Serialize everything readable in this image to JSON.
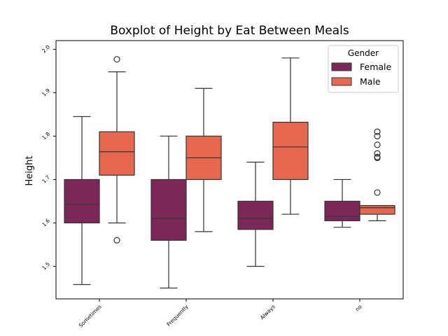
{
  "chart_data": {
    "type": "boxplot",
    "title": "Boxplot of Height by Eat Between Meals",
    "xlabel": "",
    "ylabel": "Height",
    "ylim": [
      1.425,
      2.02
    ],
    "yticks": [
      1.5,
      1.6,
      1.7,
      1.8,
      1.9,
      2.0
    ],
    "categories": [
      "Sometimes",
      "Frequently",
      "Always",
      "no"
    ],
    "legend": {
      "title": "Gender",
      "placement": "top-right"
    },
    "grid": false,
    "series": [
      {
        "name": "Female",
        "color": "#7b2858",
        "boxes": [
          {
            "whisker_low": 1.458,
            "q1": 1.6,
            "median": 1.643,
            "q3": 1.7,
            "whisker_high": 1.845,
            "outliers": []
          },
          {
            "whisker_low": 1.45,
            "q1": 1.56,
            "median": 1.61,
            "q3": 1.7,
            "whisker_high": 1.8,
            "outliers": []
          },
          {
            "whisker_low": 1.5,
            "q1": 1.585,
            "median": 1.61,
            "q3": 1.65,
            "whisker_high": 1.74,
            "outliers": []
          },
          {
            "whisker_low": 1.59,
            "q1": 1.605,
            "median": 1.615,
            "q3": 1.65,
            "whisker_high": 1.7,
            "outliers": []
          }
        ]
      },
      {
        "name": "Male",
        "color": "#e5684f",
        "boxes": [
          {
            "whisker_low": 1.6,
            "q1": 1.71,
            "median": 1.764,
            "q3": 1.81,
            "whisker_high": 1.948,
            "outliers": [
              1.56,
              1.977
            ]
          },
          {
            "whisker_low": 1.58,
            "q1": 1.7,
            "median": 1.75,
            "q3": 1.8,
            "whisker_high": 1.91,
            "outliers": []
          },
          {
            "whisker_low": 1.62,
            "q1": 1.7,
            "median": 1.775,
            "q3": 1.832,
            "whisker_high": 1.98,
            "outliers": []
          },
          {
            "whisker_low": 1.605,
            "q1": 1.62,
            "median": 1.635,
            "q3": 1.64,
            "whisker_high": 1.64,
            "outliers": [
              1.67,
              1.75,
              1.752,
              1.76,
              1.78,
              1.8,
              1.81
            ]
          }
        ]
      }
    ]
  }
}
